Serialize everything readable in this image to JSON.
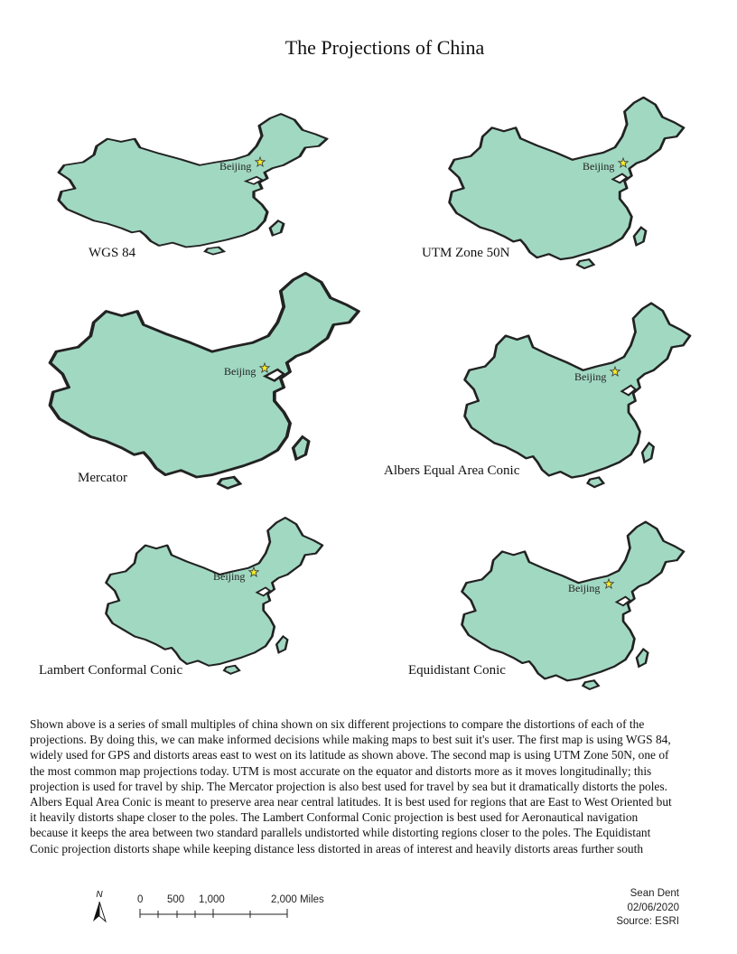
{
  "title": "The Projections of China",
  "city_label": "Beijing",
  "fill_color": "#a1d8c2",
  "marker_color": "#f7ec29",
  "maps": [
    {
      "label": "WGS 84"
    },
    {
      "label": "UTM Zone 50N"
    },
    {
      "label": "Mercator"
    },
    {
      "label": "Albers Equal Area Conic"
    },
    {
      "label": "Lambert Conformal Conic"
    },
    {
      "label": "Equidistant Conic"
    }
  ],
  "description": "Shown above is a series of small multiples of china shown on six different projections to compare the distortions of each of the projections. By doing this, we can make informed decisions while making maps to best suit it's user. The first map is using WGS 84, widely used for GPS and distorts areas east to west on its latitude as shown above. The second map is using UTM Zone 50N, one of the most common map projections today. UTM is most accurate on the equator and distorts more as it moves longitudinally; this projection is used for travel by ship. The Mercator projection is also best used for travel by sea but it dramatically distorts the poles. Albers Equal Area Conic is meant to preserve area near central latitudes. It is best used for regions that are East to West Oriented but it heavily distorts shape closer to the poles. The Lambert Conformal Conic projection is best used for Aeronautical navigation because it keeps the area between two standard parallels undistorted while distorting regions closer to the poles. The Equidistant Conic projection distorts shape while keeping distance less distorted in areas of interest and heavily distorts areas further south",
  "north_arrow": "N",
  "scale_bar": {
    "labels": [
      "0",
      "500",
      "1,000",
      "2,000 Miles"
    ]
  },
  "credits": {
    "author": "Sean Dent",
    "date": "02/06/2020",
    "source": "Source: ESRI"
  }
}
